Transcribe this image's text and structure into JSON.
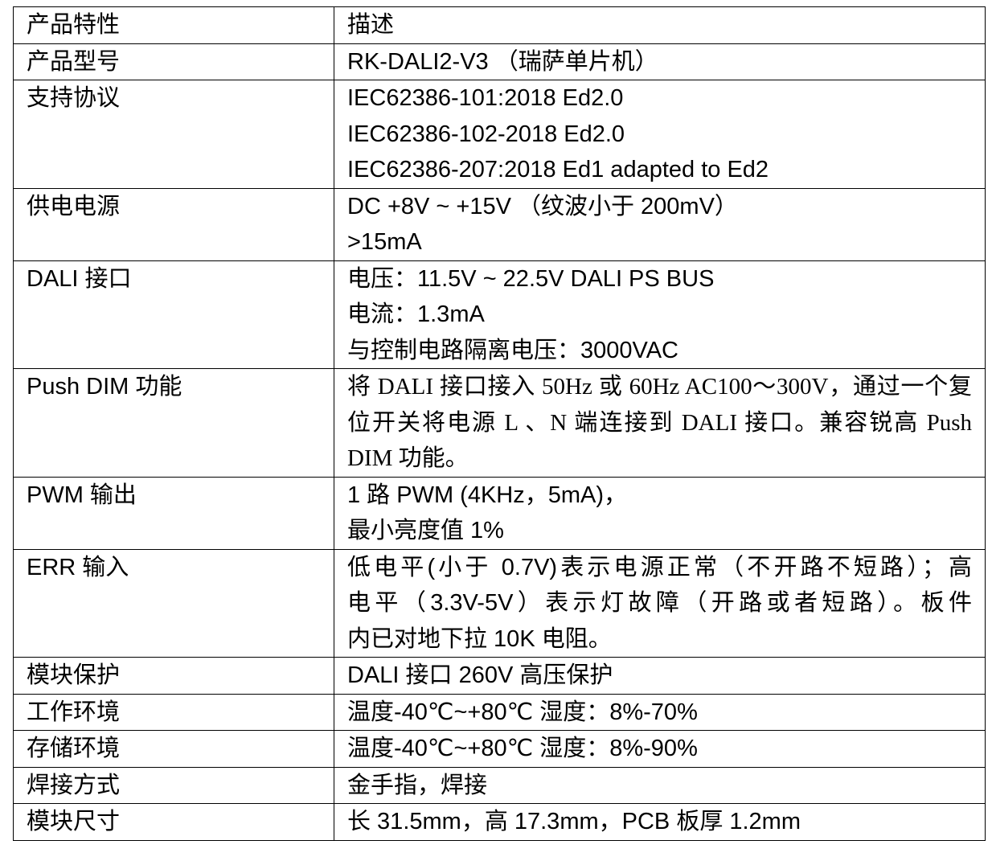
{
  "table": {
    "header": [
      "产品特性",
      "描述"
    ],
    "rows": [
      {
        "label": "产品型号",
        "lines": [
          "RK-DALI2-V3 （瑞萨单片机）"
        ]
      },
      {
        "label": "支持协议",
        "lines": [
          "IEC62386-101:2018 Ed2.0",
          "IEC62386-102-2018 Ed2.0",
          "IEC62386-207:2018 Ed1 adapted to Ed2"
        ]
      },
      {
        "label": "供电电源",
        "lines": [
          "DC +8V ~ +15V （纹波小于 200mV）",
          ">15mA"
        ]
      },
      {
        "label": "DALI 接口",
        "lines": [
          "电压：11.5V ~ 22.5V DALI PS BUS",
          "电流：1.3mA",
          "与控制电路隔离电压：3000VAC"
        ]
      },
      {
        "label": "Push DIM 功能",
        "lines": [
          "将 DALI 接口接入 50Hz 或 60Hz AC100～300V，通过一个复",
          "位开关将电源 L 、N 端连接到 DALI 接口。兼容锐高 Push",
          "DIM 功能。"
        ]
      },
      {
        "label": "PWM 输出",
        "lines": [
          "1 路 PWM (4KHz，5mA)，",
          "最小亮度值 1%"
        ]
      },
      {
        "label": "ERR 输入",
        "lines": [
          "低电平(小于 0.7V)表示电源正常（不开路不短路）；高",
          "电平（3.3V-5V）表示灯故障（开路或者短路）。板件",
          "内已对地下拉 10K 电阻。"
        ]
      },
      {
        "label": "模块保护",
        "lines": [
          "DALI 接口 260V 高压保护"
        ]
      },
      {
        "label": "工作环境",
        "lines": [
          "温度-40℃~+80℃ 湿度：8%-70%"
        ]
      },
      {
        "label": "存储环境",
        "lines": [
          "温度-40℃~+80℃ 湿度：8%-90%"
        ]
      },
      {
        "label": "焊接方式",
        "lines": [
          "金手指，焊接"
        ]
      },
      {
        "label": "模块尺寸",
        "lines": [
          "长 31.5mm，高 17.3mm，PCB 板厚 1.2mm"
        ]
      }
    ]
  }
}
